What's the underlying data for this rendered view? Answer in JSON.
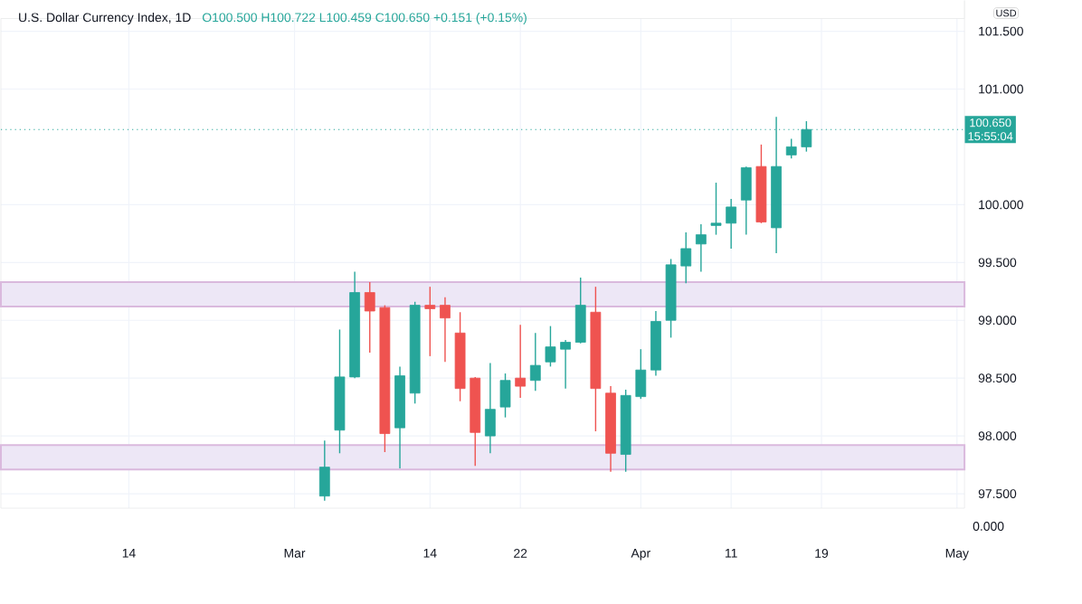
{
  "chart_data": {
    "type": "candlestick",
    "title": "U.S. Dollar Currency Index, 1D",
    "subtitle": "O100.500 H100.722 L100.459 C100.650 +0.151 (+0.15%)",
    "ylabel": "USD",
    "categories": [
      null,
      null,
      null,
      null,
      null,
      null,
      null,
      null,
      "14",
      null,
      null,
      null,
      null,
      null,
      null,
      null,
      null,
      null,
      null,
      "Mar",
      null,
      null,
      null,
      null,
      null,
      null,
      null,
      null,
      "14",
      null,
      null,
      null,
      null,
      null,
      "22",
      null,
      null,
      null,
      null,
      null,
      null,
      null,
      "Apr",
      null,
      null,
      null,
      null,
      null,
      "11",
      null,
      null,
      null,
      null,
      null,
      "19",
      null,
      null,
      null,
      null,
      null,
      null,
      null,
      null,
      "May"
    ],
    "ohlc": [
      null,
      null,
      null,
      null,
      null,
      null,
      null,
      null,
      null,
      null,
      null,
      null,
      null,
      null,
      null,
      null,
      null,
      null,
      null,
      null,
      null,
      [
        97.48,
        97.96,
        97.44,
        97.73
      ],
      [
        98.05,
        98.92,
        97.85,
        98.51
      ],
      [
        98.51,
        99.42,
        98.5,
        99.24
      ],
      [
        99.24,
        99.33,
        98.72,
        99.08
      ],
      [
        99.11,
        99.13,
        97.86,
        98.02
      ],
      [
        98.07,
        98.6,
        97.72,
        98.52
      ],
      [
        98.37,
        99.16,
        98.28,
        99.13
      ],
      [
        99.13,
        99.29,
        98.69,
        99.1
      ],
      [
        99.13,
        99.2,
        98.64,
        99.02
      ],
      [
        98.89,
        99.07,
        98.3,
        98.41
      ],
      [
        98.5,
        98.51,
        97.74,
        98.03
      ],
      [
        98.0,
        98.63,
        97.85,
        98.23
      ],
      [
        98.25,
        98.54,
        98.16,
        98.48
      ],
      [
        98.5,
        98.96,
        98.33,
        98.43
      ],
      [
        98.48,
        98.89,
        98.39,
        98.61
      ],
      [
        98.64,
        98.95,
        98.6,
        98.77
      ],
      [
        98.75,
        98.83,
        98.41,
        98.81
      ],
      [
        98.81,
        99.37,
        98.8,
        99.13
      ],
      [
        99.07,
        99.29,
        98.04,
        98.41
      ],
      [
        98.37,
        98.43,
        97.69,
        97.85
      ],
      [
        97.84,
        98.4,
        97.69,
        98.35
      ],
      [
        98.34,
        98.75,
        98.32,
        98.57
      ],
      [
        98.57,
        99.08,
        98.52,
        98.99
      ],
      [
        99.0,
        99.53,
        98.85,
        99.48
      ],
      [
        99.47,
        99.76,
        99.32,
        99.62
      ],
      [
        99.66,
        99.83,
        99.42,
        99.74
      ],
      [
        99.82,
        100.19,
        99.74,
        99.84
      ],
      [
        99.84,
        100.05,
        99.62,
        99.98
      ],
      [
        100.04,
        100.33,
        99.74,
        100.32
      ],
      [
        100.33,
        100.52,
        99.84,
        99.85
      ],
      [
        99.8,
        100.76,
        99.58,
        100.33
      ],
      [
        100.43,
        100.57,
        100.4,
        100.5
      ],
      [
        100.5,
        100.722,
        100.459,
        100.65
      ],
      null,
      null,
      null,
      null,
      null,
      null,
      null,
      null,
      null,
      null
    ],
    "colors": [
      null,
      null,
      null,
      null,
      null,
      null,
      null,
      null,
      null,
      null,
      null,
      null,
      null,
      null,
      null,
      null,
      null,
      null,
      null,
      null,
      null,
      "#26a69a",
      "#26a69a",
      "#26a69a",
      "#ef5350",
      "#ef5350",
      "#26a69a",
      "#26a69a",
      "#ef5350",
      "#ef5350",
      "#ef5350",
      "#ef5350",
      "#26a69a",
      "#26a69a",
      "#ef5350",
      "#26a69a",
      "#26a69a",
      "#26a69a",
      "#26a69a",
      "#ef5350",
      "#ef5350",
      "#26a69a",
      "#26a69a",
      "#26a69a",
      "#26a69a",
      "#26a69a",
      "#26a69a",
      "#26a69a",
      "#26a69a",
      "#26a69a",
      "#ef5350",
      "#26a69a",
      "#26a69a",
      "#26a69a",
      null,
      null,
      null,
      null,
      null,
      null,
      null,
      null,
      null,
      null
    ],
    "ylim": [
      97.375,
      101.61
    ],
    "yticks": [
      {
        "value": 97.5,
        "label": "97.500"
      },
      {
        "value": 98.0,
        "label": "98.000"
      },
      {
        "value": 98.5,
        "label": "98.500"
      },
      {
        "value": 99.0,
        "label": "99.000"
      },
      {
        "value": 99.5,
        "label": "99.500"
      },
      {
        "value": 100.0,
        "label": "100.000"
      },
      {
        "value": 101.0,
        "label": "101.000"
      },
      {
        "value": 101.5,
        "label": "101.500"
      }
    ],
    "grid": true,
    "ref_lines": [
      {
        "axis": "y",
        "value": 100.65,
        "label": "100.650",
        "color": "#26a69a",
        "line_style": "dotted"
      }
    ],
    "bands": [
      {
        "axis": "y",
        "from": 99.12,
        "to": 99.33,
        "color": "#ede7f6"
      },
      {
        "axis": "y",
        "from": 97.71,
        "to": 97.92,
        "color": "#ede7f6"
      }
    ],
    "annotations": [
      "15:55:04",
      "0.000"
    ]
  }
}
